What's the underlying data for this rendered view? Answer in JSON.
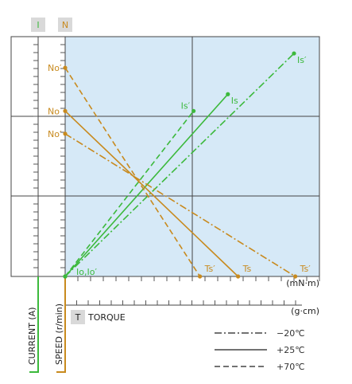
{
  "chart_data": {
    "type": "line",
    "title": "",
    "axes": {
      "current": {
        "badge": "I",
        "label": "CURRENT (A)",
        "color": "#3cb93c"
      },
      "speed": {
        "badge": "N",
        "label": "SPEED (r/min)",
        "color": "#c88a1e"
      },
      "torque": {
        "badge": "T",
        "label": "TORQUE",
        "unit_top": "(mN·m)",
        "unit_bottom": "(g·cm)"
      }
    },
    "xlim": [
      0,
      1
    ],
    "ylim": [
      0,
      1
    ],
    "series": [
      {
        "group": "current",
        "style": "dashdot",
        "x": [
          0,
          0.9
        ],
        "y": [
          0,
          0.93
        ],
        "start_label": "",
        "end_label": "Is′"
      },
      {
        "group": "current",
        "style": "solid",
        "x": [
          0,
          0.64
        ],
        "y": [
          0,
          0.76
        ],
        "start_label": "",
        "end_label": "Is"
      },
      {
        "group": "current",
        "style": "dashed",
        "x": [
          0,
          0.505
        ],
        "y": [
          0,
          0.69
        ],
        "start_label": "",
        "end_label": "Is′"
      },
      {
        "group": "speed",
        "style": "dashdot",
        "x": [
          0,
          0.905
        ],
        "y": [
          0.595,
          0
        ],
        "start_label": "No′",
        "end_label": "Ts′"
      },
      {
        "group": "speed",
        "style": "solid",
        "x": [
          0,
          0.68
        ],
        "y": [
          0.69,
          0
        ],
        "start_label": "No",
        "end_label": "Ts"
      },
      {
        "group": "speed",
        "style": "dashed",
        "x": [
          0,
          0.53
        ],
        "y": [
          0.87,
          0
        ],
        "start_label": "No′",
        "end_label": "Ts′"
      }
    ],
    "origin_label": "Io,Io′",
    "legend": {
      "position": "bottom-right",
      "entries": [
        {
          "style": "dashdot",
          "label": "−20℃"
        },
        {
          "style": "solid",
          "label": "+25℃"
        },
        {
          "style": "dashed",
          "label": "+70℃"
        }
      ]
    },
    "colors": {
      "current": "#3cb93c",
      "speed": "#c88a1e",
      "plot_bg": "#d6e9f7",
      "grid": "#444444"
    },
    "grid": true
  }
}
